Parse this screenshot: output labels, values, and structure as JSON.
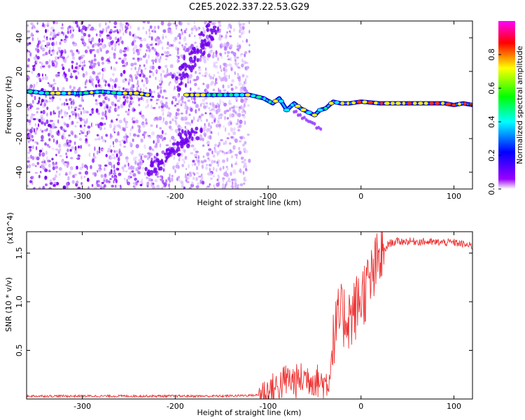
{
  "title": "C2E5.2022.337.22.53.G29",
  "chart_data": [
    {
      "type": "heatmap",
      "xlabel": "Height of straight line (km)",
      "ylabel": "Frequency (Hz)",
      "xlim": [
        -360,
        120
      ],
      "ylim": [
        -50,
        50
      ],
      "xticks": [
        -300,
        -200,
        -100,
        0,
        100
      ],
      "yticks": [
        -40,
        -20,
        0,
        20,
        40
      ],
      "colorbar": {
        "label": "Normalized spectral amplitude",
        "range": [
          0,
          1
        ],
        "ticks": [
          "0.0",
          "0.2",
          "0.4",
          "0.6",
          "0.8"
        ],
        "colors": [
          "#ffffff",
          "#9900ff",
          "#0000ff",
          "#00ffff",
          "#00ff00",
          "#ffff00",
          "#ff0000",
          "#ff00ff"
        ]
      },
      "ridge": {
        "name": "frequency ridge",
        "x": [
          -355,
          -340,
          -320,
          -300,
          -280,
          -260,
          -240,
          -230,
          -185,
          -160,
          -140,
          -120,
          -105,
          -95,
          -88,
          -80,
          -72,
          -65,
          -58,
          -50,
          -44,
          -38,
          -30,
          -22,
          -12,
          0,
          20,
          60,
          90,
          100,
          110,
          120
        ],
        "y": [
          8,
          7,
          7,
          7,
          8,
          7,
          7,
          6,
          6,
          6,
          6,
          6,
          4,
          1,
          4,
          -3,
          1,
          -2,
          -4,
          -6,
          -3,
          -2,
          2,
          1,
          1,
          2,
          1,
          1,
          1,
          0,
          1,
          0
        ]
      },
      "noise_region_x": [
        -360,
        -120
      ],
      "dark_streaks": [
        {
          "x": [
            -230,
            -175
          ],
          "y": [
            -40,
            -15
          ]
        },
        {
          "x": [
            -200,
            -160
          ],
          "y": [
            10,
            48
          ]
        }
      ]
    },
    {
      "type": "line",
      "xlabel": "Height of straight line (km)",
      "ylabel": "SNR (10 * v/v)",
      "multiplier": "(x10^4)",
      "xlim": [
        -360,
        120
      ],
      "ylim": [
        0,
        1.72
      ],
      "xticks": [
        -300,
        -200,
        -100,
        0,
        100
      ],
      "yticks": [
        "0.5",
        "1.0",
        "1.5"
      ],
      "color": "#ee3333",
      "series": [
        {
          "x": [
            -360,
            -250,
            -150,
            -110,
            -100,
            -90,
            -80,
            -70,
            -60,
            -50,
            -40,
            -35,
            -30,
            -25,
            -20,
            -10,
            0,
            10,
            20,
            25,
            30,
            40,
            60,
            80,
            100,
            110,
            120
          ],
          "values": [
            0.03,
            0.03,
            0.03,
            0.04,
            0.07,
            0.12,
            0.2,
            0.18,
            0.22,
            0.2,
            0.16,
            0.18,
            0.55,
            0.8,
            0.85,
            0.85,
            1.05,
            1.2,
            1.45,
            1.52,
            1.6,
            1.62,
            1.62,
            1.61,
            1.61,
            1.59,
            1.57
          ]
        }
      ]
    }
  ]
}
